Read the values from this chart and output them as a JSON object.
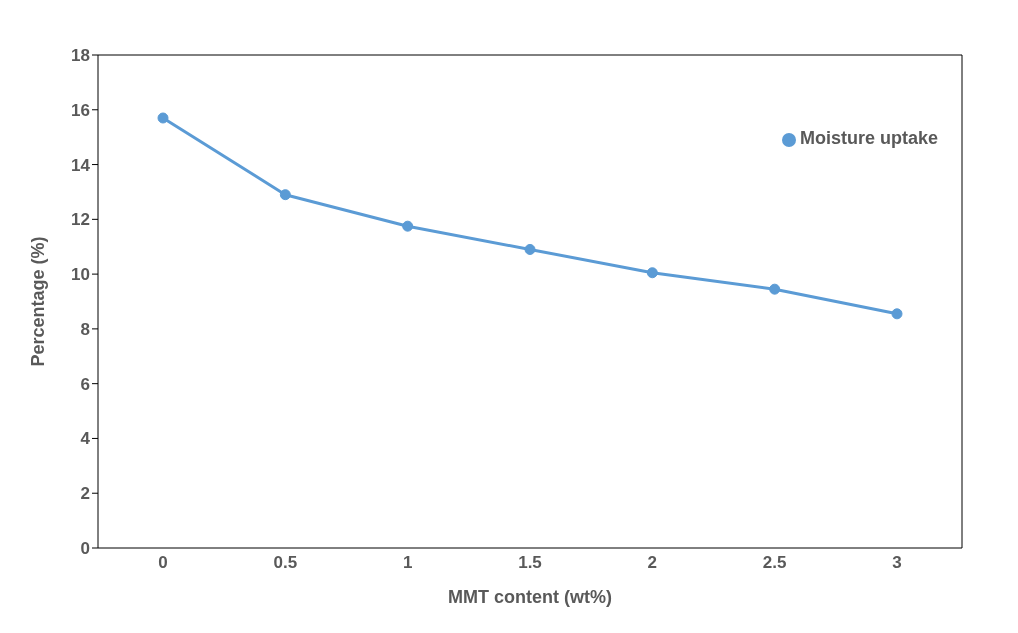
{
  "chart_data": {
    "type": "line",
    "xlabel": "MMT content (wt%)",
    "ylabel": "Percentage (%)",
    "categories": [
      "0",
      "0.5",
      "1",
      "1.5",
      "2",
      "2.5",
      "3"
    ],
    "series": [
      {
        "name": "Moisture uptake",
        "color": "#5b9bd5",
        "values": [
          15.7,
          12.9,
          11.75,
          10.9,
          10.05,
          9.45,
          8.55
        ]
      }
    ],
    "ylim": [
      0,
      18
    ],
    "yticks": [
      0,
      2,
      4,
      6,
      8,
      10,
      12,
      14,
      16,
      18
    ],
    "grid": false,
    "legend": "top right",
    "marker": "circle",
    "line_style": "solid"
  }
}
